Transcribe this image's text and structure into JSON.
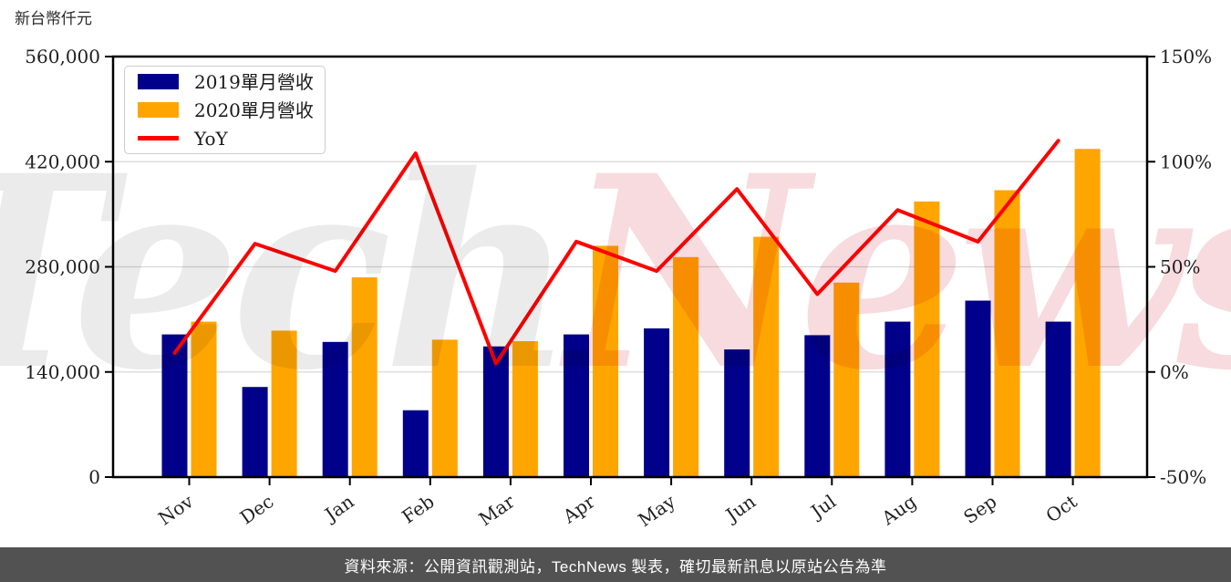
{
  "chart_data": {
    "type": "bar+line",
    "axis_title_left": "新台幣仟元",
    "categories": [
      "Nov",
      "Dec",
      "Jan",
      "Feb",
      "Mar",
      "Apr",
      "May",
      "Jun",
      "Jul",
      "Aug",
      "Sep",
      "Oct"
    ],
    "series": [
      {
        "name": "2019單月營收",
        "type": "bar",
        "axis": "left",
        "color": "#00008b",
        "values": [
          190000,
          120000,
          180000,
          89000,
          174000,
          190000,
          198000,
          170000,
          189000,
          207000,
          235000,
          207000
        ]
      },
      {
        "name": "2020單月營收",
        "type": "bar",
        "axis": "left",
        "color": "#ffa500",
        "values": [
          207000,
          195000,
          266000,
          183000,
          181000,
          308000,
          293000,
          320000,
          259000,
          367000,
          382000,
          437000
        ]
      },
      {
        "name": "YoY",
        "type": "line",
        "axis": "right",
        "unit": "%",
        "color": "#ff0000",
        "values": [
          9,
          61,
          48,
          104,
          4,
          62,
          48,
          87,
          37,
          77,
          62,
          110
        ]
      }
    ],
    "left_axis": {
      "range": [
        0,
        560000
      ],
      "tick_labels": [
        "0",
        "140,000",
        "280,000",
        "420,000",
        "560,000"
      ]
    },
    "right_axis": {
      "range": [
        -50,
        150
      ],
      "tick_labels": [
        "-50%",
        "0%",
        "50%",
        "100%",
        "150%"
      ]
    },
    "grid": "horizontal",
    "grid_color": "#d7d7d7",
    "legend_position": "top-left"
  },
  "legend": {
    "items": [
      {
        "label": "2019單月營收",
        "swatch": "bar",
        "color": "#00008b"
      },
      {
        "label": "2020單月營收",
        "swatch": "bar",
        "color": "#ffa500"
      },
      {
        "label": "YoY",
        "swatch": "line",
        "color": "#ff0000"
      }
    ]
  },
  "watermark": {
    "part1": "Tech",
    "part2": "News",
    "color1": "#ebebeb",
    "color2": "#f7dbdf"
  },
  "footer": {
    "text": "資料來源：公開資訊觀測站，TechNews 製表，確切最新訊息以原站公告為準",
    "background": "#525252",
    "color": "#ffffff"
  }
}
